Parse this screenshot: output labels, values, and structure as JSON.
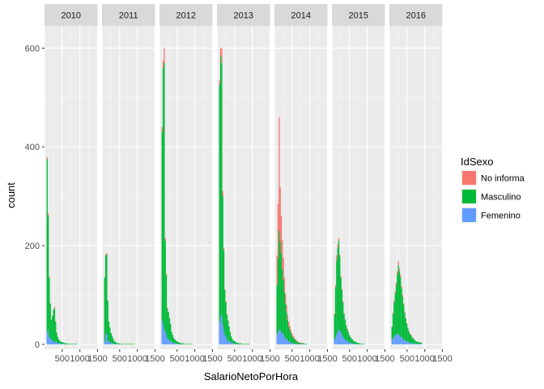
{
  "chart_data": {
    "type": "bar",
    "stacked": true,
    "facet_by": "year",
    "facets": [
      "2010",
      "2011",
      "2012",
      "2013",
      "2014",
      "2015",
      "2016"
    ],
    "xlabel": "SalarioNetoPorHora",
    "ylabel": "count",
    "xlim": [
      0,
      1500
    ],
    "ylim": [
      -10,
      645
    ],
    "x_ticks": [
      500,
      1000,
      1500
    ],
    "x_tick_labels": [
      "500",
      "1000",
      "1500"
    ],
    "y_ticks": [
      0,
      200,
      400,
      600
    ],
    "y_tick_labels": [
      "0",
      "200",
      "400",
      "600"
    ],
    "bin_width": 30,
    "grid": true,
    "legend": {
      "title": "IdSexo",
      "position": "right",
      "entries": [
        {
          "key": "no_info",
          "label": "No informa",
          "color": "#F8766D"
        },
        {
          "key": "masc",
          "label": "Masculino",
          "color": "#00BA38"
        },
        {
          "key": "fem",
          "label": "Femenino",
          "color": "#619CFF"
        }
      ]
    },
    "panels": [
      {
        "facet": "2010",
        "x": [
          75,
          105,
          135,
          165,
          195,
          225,
          255,
          285,
          315,
          345,
          375,
          405,
          435,
          465,
          495,
          525,
          555,
          585,
          615,
          645,
          675,
          705,
          735,
          765,
          795,
          825,
          855,
          885,
          915
        ],
        "fem": [
          25,
          30,
          15,
          12,
          10,
          8,
          5,
          4,
          6,
          4,
          3,
          2,
          2,
          1,
          1,
          1,
          0,
          0,
          0,
          0,
          0,
          0,
          0,
          0,
          0,
          0,
          0,
          0,
          0
        ],
        "masc": [
          350,
          230,
          120,
          70,
          40,
          50,
          65,
          70,
          40,
          20,
          12,
          8,
          5,
          4,
          4,
          3,
          3,
          2,
          2,
          2,
          1,
          1,
          1,
          1,
          1,
          1,
          1,
          1,
          1
        ],
        "no_info": [
          4,
          5,
          2,
          1,
          0,
          0,
          1,
          2,
          1,
          0,
          0,
          0,
          0,
          0,
          0,
          0,
          0,
          0,
          0,
          0,
          0,
          0,
          0,
          0,
          0,
          0,
          0,
          0,
          0
        ]
      },
      {
        "facet": "2011",
        "x": [
          75,
          105,
          135,
          165,
          195,
          225,
          255,
          285,
          315,
          345,
          375,
          405,
          435,
          465,
          495,
          525,
          555,
          585,
          615,
          645,
          675,
          705,
          735,
          765,
          795,
          825,
          855,
          885,
          915
        ],
        "fem": [
          5,
          20,
          22,
          8,
          6,
          4,
          3,
          3,
          2,
          1,
          1,
          1,
          0,
          0,
          0,
          0,
          0,
          0,
          0,
          0,
          0,
          0,
          0,
          0,
          0,
          0,
          0,
          0,
          0
        ],
        "masc": [
          130,
          160,
          160,
          80,
          40,
          30,
          20,
          15,
          10,
          6,
          4,
          3,
          2,
          2,
          2,
          1,
          1,
          1,
          1,
          1,
          1,
          1,
          1,
          1,
          1,
          1,
          1,
          1,
          1
        ],
        "no_info": [
          1,
          2,
          3,
          1,
          0,
          0,
          0,
          0,
          0,
          0,
          0,
          0,
          0,
          0,
          0,
          0,
          0,
          0,
          0,
          0,
          0,
          0,
          0,
          0,
          0,
          0,
          0,
          0,
          0
        ]
      },
      {
        "facet": "2012",
        "x": [
          75,
          105,
          135,
          165,
          195,
          225,
          255,
          285,
          315,
          345,
          375,
          405,
          435,
          465,
          495,
          525,
          555,
          585,
          615,
          645,
          675,
          705,
          735,
          765,
          795,
          825,
          855,
          885,
          915
        ],
        "fem": [
          50,
          40,
          30,
          25,
          20,
          12,
          10,
          8,
          6,
          5,
          4,
          3,
          2,
          2,
          1,
          1,
          1,
          0,
          0,
          0,
          0,
          0,
          0,
          0,
          0,
          0,
          0,
          0,
          0
        ],
        "masc": [
          380,
          520,
          540,
          185,
          120,
          60,
          55,
          45,
          35,
          20,
          15,
          10,
          8,
          6,
          5,
          4,
          3,
          3,
          2,
          2,
          2,
          1,
          1,
          1,
          1,
          1,
          1,
          1,
          1
        ],
        "no_info": [
          10,
          15,
          30,
          5,
          3,
          2,
          1,
          1,
          1,
          0,
          0,
          0,
          0,
          0,
          0,
          0,
          0,
          0,
          0,
          0,
          0,
          0,
          0,
          0,
          0,
          0,
          0,
          0,
          0
        ]
      },
      {
        "facet": "2013",
        "x": [
          75,
          105,
          135,
          165,
          195,
          225,
          255,
          285,
          315,
          345,
          375,
          405,
          435,
          465,
          495,
          525,
          555,
          585,
          615,
          645,
          675,
          705,
          735,
          765,
          795,
          825,
          855,
          885,
          915
        ],
        "fem": [
          45,
          55,
          60,
          40,
          30,
          20,
          15,
          10,
          8,
          6,
          5,
          4,
          3,
          2,
          2,
          1,
          1,
          0,
          0,
          0,
          0,
          0,
          0,
          0,
          0,
          0,
          0,
          0,
          0
        ],
        "masc": [
          480,
          530,
          510,
          260,
          160,
          90,
          70,
          50,
          40,
          30,
          20,
          12,
          8,
          6,
          5,
          4,
          3,
          3,
          2,
          2,
          2,
          1,
          1,
          1,
          1,
          1,
          1,
          1,
          1
        ],
        "no_info": [
          10,
          15,
          30,
          10,
          5,
          2,
          2,
          1,
          1,
          0,
          0,
          0,
          0,
          0,
          0,
          0,
          0,
          0,
          0,
          0,
          0,
          0,
          0,
          0,
          0,
          0,
          0,
          0,
          0
        ]
      },
      {
        "facet": "2014",
        "x": [
          75,
          105,
          135,
          165,
          195,
          225,
          255,
          285,
          315,
          345,
          375,
          405,
          435,
          465,
          495,
          525,
          555,
          585,
          615,
          645,
          675,
          705,
          735,
          765,
          795,
          825,
          855,
          885,
          915
        ],
        "fem": [
          20,
          25,
          30,
          28,
          25,
          22,
          20,
          15,
          12,
          10,
          8,
          6,
          5,
          4,
          3,
          2,
          2,
          1,
          1,
          1,
          0,
          0,
          0,
          0,
          0,
          0,
          0,
          0,
          0
        ],
        "masc": [
          100,
          150,
          200,
          180,
          160,
          130,
          110,
          90,
          70,
          55,
          40,
          30,
          25,
          20,
          15,
          12,
          10,
          8,
          6,
          5,
          4,
          3,
          3,
          2,
          2,
          2,
          1,
          1,
          1
        ],
        "no_info": [
          60,
          110,
          230,
          110,
          75,
          60,
          45,
          30,
          20,
          15,
          12,
          10,
          8,
          6,
          5,
          4,
          3,
          2,
          2,
          1,
          1,
          1,
          1,
          1,
          1,
          1,
          0,
          0,
          0
        ]
      },
      {
        "facet": "2015",
        "x": [
          75,
          105,
          135,
          165,
          195,
          225,
          255,
          285,
          315,
          345,
          375,
          405,
          435,
          465,
          495,
          525,
          555,
          585,
          615,
          645,
          675,
          705,
          735,
          765,
          795,
          825,
          855,
          885,
          915
        ],
        "fem": [
          10,
          15,
          20,
          25,
          30,
          28,
          25,
          20,
          15,
          12,
          10,
          8,
          6,
          5,
          4,
          3,
          2,
          2,
          1,
          1,
          1,
          1,
          0,
          0,
          0,
          0,
          0,
          0,
          0
        ],
        "masc": [
          50,
          100,
          150,
          170,
          180,
          150,
          110,
          90,
          70,
          50,
          40,
          30,
          25,
          20,
          15,
          12,
          10,
          8,
          6,
          5,
          4,
          3,
          3,
          2,
          2,
          1,
          1,
          1,
          1
        ],
        "no_info": [
          2,
          5,
          10,
          8,
          5,
          4,
          3,
          2,
          2,
          1,
          1,
          1,
          1,
          1,
          0,
          0,
          0,
          0,
          0,
          0,
          0,
          0,
          0,
          0,
          0,
          0,
          0,
          0,
          0
        ]
      },
      {
        "facet": "2016",
        "x": [
          75,
          105,
          135,
          165,
          195,
          225,
          255,
          285,
          315,
          345,
          375,
          405,
          435,
          465,
          495,
          525,
          555,
          585,
          615,
          645,
          675,
          705,
          735,
          765,
          795,
          825,
          855,
          885,
          915
        ],
        "fem": [
          10,
          12,
          15,
          18,
          20,
          22,
          20,
          18,
          16,
          14,
          12,
          10,
          8,
          7,
          6,
          5,
          4,
          3,
          3,
          2,
          2,
          2,
          1,
          1,
          1,
          1,
          1,
          1,
          1
        ],
        "masc": [
          25,
          50,
          70,
          85,
          100,
          120,
          140,
          130,
          120,
          100,
          85,
          70,
          55,
          45,
          35,
          28,
          22,
          18,
          15,
          12,
          10,
          8,
          6,
          5,
          4,
          4,
          3,
          3,
          2
        ],
        "no_info": [
          1,
          2,
          3,
          4,
          5,
          6,
          8,
          6,
          5,
          4,
          3,
          3,
          2,
          2,
          2,
          1,
          1,
          1,
          1,
          1,
          1,
          0,
          0,
          0,
          0,
          0,
          0,
          0,
          0
        ]
      }
    ]
  }
}
